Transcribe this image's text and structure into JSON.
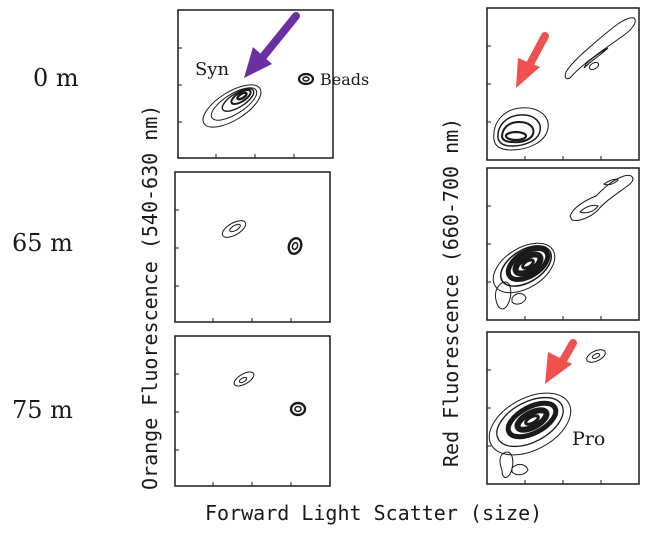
{
  "figure": {
    "depth_labels": [
      "0 m",
      "65 m",
      "75 m"
    ],
    "left_axis_label": "Orange Fluorescence (540-630 nm)",
    "right_axis_label": "Red Fluorescence (660-700 nm)",
    "x_axis_label": "Forward Light Scatter (size)",
    "annotations": {
      "syn": "Syn",
      "beads": "Beads",
      "pro": "Pro"
    },
    "colors": {
      "purple_arrow": "#6b2fa3",
      "red_arrow": "#f05050",
      "ink": "#1a1a1a"
    }
  }
}
